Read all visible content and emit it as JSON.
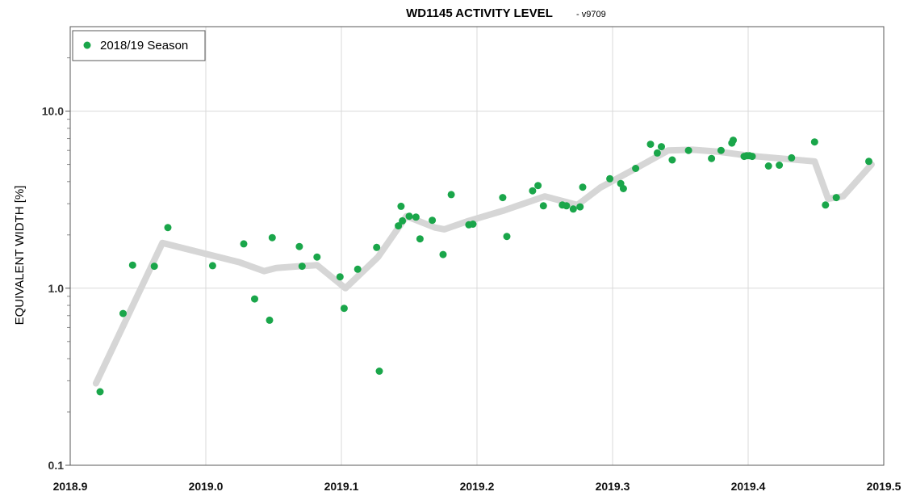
{
  "chart_data": {
    "type": "scatter",
    "title": "WD1145 ACTIVITY LEVEL",
    "subtitle": "-  v9709",
    "xlabel": "",
    "ylabel": "EQUIVALENT WIDTH [%]",
    "xlim": [
      2018.9,
      2019.5
    ],
    "ylim": [
      0.1,
      30
    ],
    "yscale": "log",
    "x_ticks": [
      "2018.9",
      "2019.0",
      "2019.1",
      "2019.2",
      "2019.3",
      "2019.4",
      "2019.5"
    ],
    "y_ticks": [
      "0.1",
      "1.0",
      "10.0"
    ],
    "grid": true,
    "legend_position": "top-left",
    "colors": {
      "points": "#1aa64a",
      "trend": "#d6d6d6",
      "grid": "#d9d9d9"
    },
    "series": [
      {
        "name": "2018/19 Season",
        "type": "scatter",
        "x": [
          2018.922,
          2018.939,
          2018.946,
          2018.962,
          2018.972,
          2019.005,
          2019.028,
          2019.036,
          2019.047,
          2019.049,
          2019.069,
          2019.071,
          2019.082,
          2019.099,
          2019.102,
          2019.112,
          2019.126,
          2019.128,
          2019.142,
          2019.144,
          2019.145,
          2019.15,
          2019.155,
          2019.158,
          2019.167,
          2019.175,
          2019.181,
          2019.194,
          2019.197,
          2019.219,
          2019.222,
          2019.241,
          2019.245,
          2019.249,
          2019.263,
          2019.266,
          2019.271,
          2019.276,
          2019.278,
          2019.298,
          2019.306,
          2019.308,
          2019.317,
          2019.328,
          2019.333,
          2019.336,
          2019.344,
          2019.356,
          2019.373,
          2019.38,
          2019.388,
          2019.389,
          2019.397,
          2019.399,
          2019.401,
          2019.403,
          2019.415,
          2019.423,
          2019.432,
          2019.449,
          2019.457,
          2019.465,
          2019.489
        ],
        "y": [
          0.26,
          0.72,
          1.35,
          1.33,
          2.2,
          1.34,
          1.78,
          0.87,
          0.66,
          1.93,
          1.72,
          1.33,
          1.5,
          1.16,
          0.77,
          1.28,
          1.7,
          0.34,
          2.25,
          2.9,
          2.4,
          2.55,
          2.52,
          1.9,
          2.42,
          1.55,
          3.38,
          2.28,
          2.3,
          3.25,
          1.96,
          3.55,
          3.8,
          2.92,
          2.95,
          2.92,
          2.8,
          2.88,
          3.72,
          4.15,
          3.9,
          3.65,
          4.75,
          6.5,
          5.8,
          6.3,
          5.3,
          6.0,
          5.4,
          6.0,
          6.6,
          6.85,
          5.55,
          5.6,
          5.6,
          5.55,
          4.9,
          4.95,
          5.45,
          6.7,
          2.95,
          3.25,
          5.2
        ]
      },
      {
        "name": "",
        "type": "line",
        "x": [
          2018.919,
          2018.968,
          2019.025,
          2019.043,
          2019.052,
          2019.069,
          2019.082,
          2019.103,
          2019.127,
          2019.148,
          2019.169,
          2019.176,
          2019.194,
          2019.22,
          2019.25,
          2019.274,
          2019.291,
          2019.316,
          2019.341,
          2019.359,
          2019.378,
          2019.401,
          2019.449,
          2019.459,
          2019.47,
          2019.491
        ],
        "y": [
          0.29,
          1.8,
          1.4,
          1.25,
          1.3,
          1.33,
          1.35,
          1.0,
          1.5,
          2.55,
          2.2,
          2.15,
          2.4,
          2.75,
          3.3,
          2.95,
          3.7,
          4.7,
          6.0,
          6.05,
          5.9,
          5.6,
          5.2,
          3.2,
          3.3,
          5.0
        ]
      }
    ]
  }
}
